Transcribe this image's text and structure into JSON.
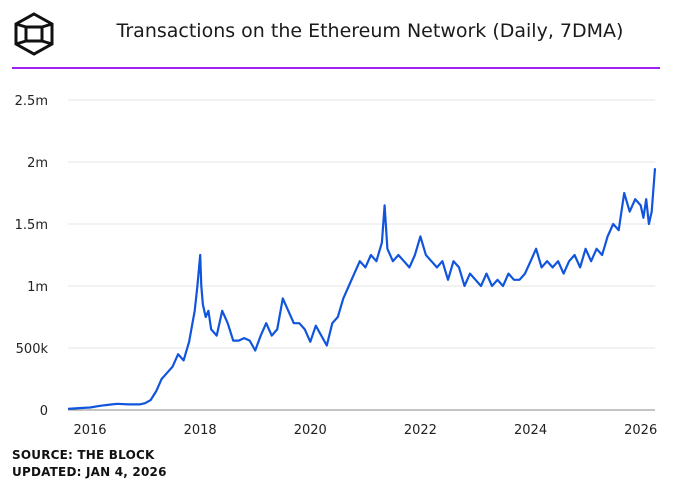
{
  "header": {
    "title": "Transactions on the Ethereum Network (Daily, 7DMA)"
  },
  "footer": {
    "source": "SOURCE: THE BLOCK",
    "updated": "UPDATED: JAN 4, 2026"
  },
  "colors": {
    "line": "#1155dd",
    "accent_rule": "#a020f0",
    "grid": "#e6e6e6"
  },
  "chart_data": {
    "type": "line",
    "title": "Transactions on the Ethereum Network (Daily, 7DMA)",
    "xlabel": "",
    "ylabel": "",
    "xlim": [
      2015.6,
      2026.26
    ],
    "ylim": [
      0,
      2500000
    ],
    "x_ticks": [
      2016,
      2018,
      2020,
      2022,
      2024,
      2026
    ],
    "x_tick_labels": [
      "2016",
      "2018",
      "2020",
      "2022",
      "2024",
      "2026"
    ],
    "y_ticks": [
      0,
      500000,
      1000000,
      1500000,
      2000000,
      2500000
    ],
    "y_tick_labels": [
      "0",
      "500k",
      "1m",
      "1.5m",
      "2m",
      "2.5m"
    ],
    "grid": "horizontal",
    "series": [
      {
        "name": "",
        "x": [
          2015.6,
          2015.8,
          2016.0,
          2016.2,
          2016.4,
          2016.5,
          2016.7,
          2016.9,
          2017.0,
          2017.1,
          2017.2,
          2017.3,
          2017.4,
          2017.5,
          2017.6,
          2017.7,
          2017.8,
          2017.9,
          2017.95,
          2018.0,
          2018.02,
          2018.05,
          2018.1,
          2018.15,
          2018.2,
          2018.3,
          2018.4,
          2018.5,
          2018.6,
          2018.7,
          2018.8,
          2018.9,
          2019.0,
          2019.1,
          2019.2,
          2019.3,
          2019.4,
          2019.5,
          2019.6,
          2019.7,
          2019.8,
          2019.9,
          2020.0,
          2020.1,
          2020.2,
          2020.3,
          2020.4,
          2020.5,
          2020.6,
          2020.7,
          2020.8,
          2020.9,
          2021.0,
          2021.1,
          2021.2,
          2021.3,
          2021.35,
          2021.4,
          2021.5,
          2021.6,
          2021.7,
          2021.8,
          2021.9,
          2022.0,
          2022.1,
          2022.2,
          2022.3,
          2022.4,
          2022.5,
          2022.6,
          2022.7,
          2022.8,
          2022.9,
          2023.0,
          2023.1,
          2023.2,
          2023.3,
          2023.4,
          2023.5,
          2023.6,
          2023.7,
          2023.8,
          2023.9,
          2024.0,
          2024.1,
          2024.2,
          2024.3,
          2024.4,
          2024.5,
          2024.6,
          2024.7,
          2024.8,
          2024.9,
          2025.0,
          2025.1,
          2025.2,
          2025.3,
          2025.4,
          2025.5,
          2025.6,
          2025.7,
          2025.8,
          2025.9,
          2026.0,
          2026.05,
          2026.1,
          2026.15,
          2026.2,
          2026.26
        ],
        "y": [
          10000,
          15000,
          20000,
          35000,
          45000,
          50000,
          45000,
          45000,
          55000,
          80000,
          150000,
          250000,
          300000,
          350000,
          450000,
          400000,
          550000,
          800000,
          1000000,
          1250000,
          1000000,
          850000,
          750000,
          800000,
          650000,
          600000,
          800000,
          700000,
          560000,
          560000,
          580000,
          560000,
          480000,
          600000,
          700000,
          600000,
          650000,
          900000,
          800000,
          700000,
          700000,
          650000,
          550000,
          680000,
          600000,
          520000,
          700000,
          750000,
          900000,
          1000000,
          1100000,
          1200000,
          1150000,
          1250000,
          1200000,
          1350000,
          1650000,
          1300000,
          1200000,
          1250000,
          1200000,
          1150000,
          1250000,
          1400000,
          1250000,
          1200000,
          1150000,
          1200000,
          1050000,
          1200000,
          1150000,
          1000000,
          1100000,
          1050000,
          1000000,
          1100000,
          1000000,
          1050000,
          1000000,
          1100000,
          1050000,
          1050000,
          1100000,
          1200000,
          1300000,
          1150000,
          1200000,
          1150000,
          1200000,
          1100000,
          1200000,
          1250000,
          1150000,
          1300000,
          1200000,
          1300000,
          1250000,
          1400000,
          1500000,
          1450000,
          1750000,
          1600000,
          1700000,
          1650000,
          1550000,
          1700000,
          1500000,
          1600000,
          1950000
        ]
      }
    ]
  }
}
